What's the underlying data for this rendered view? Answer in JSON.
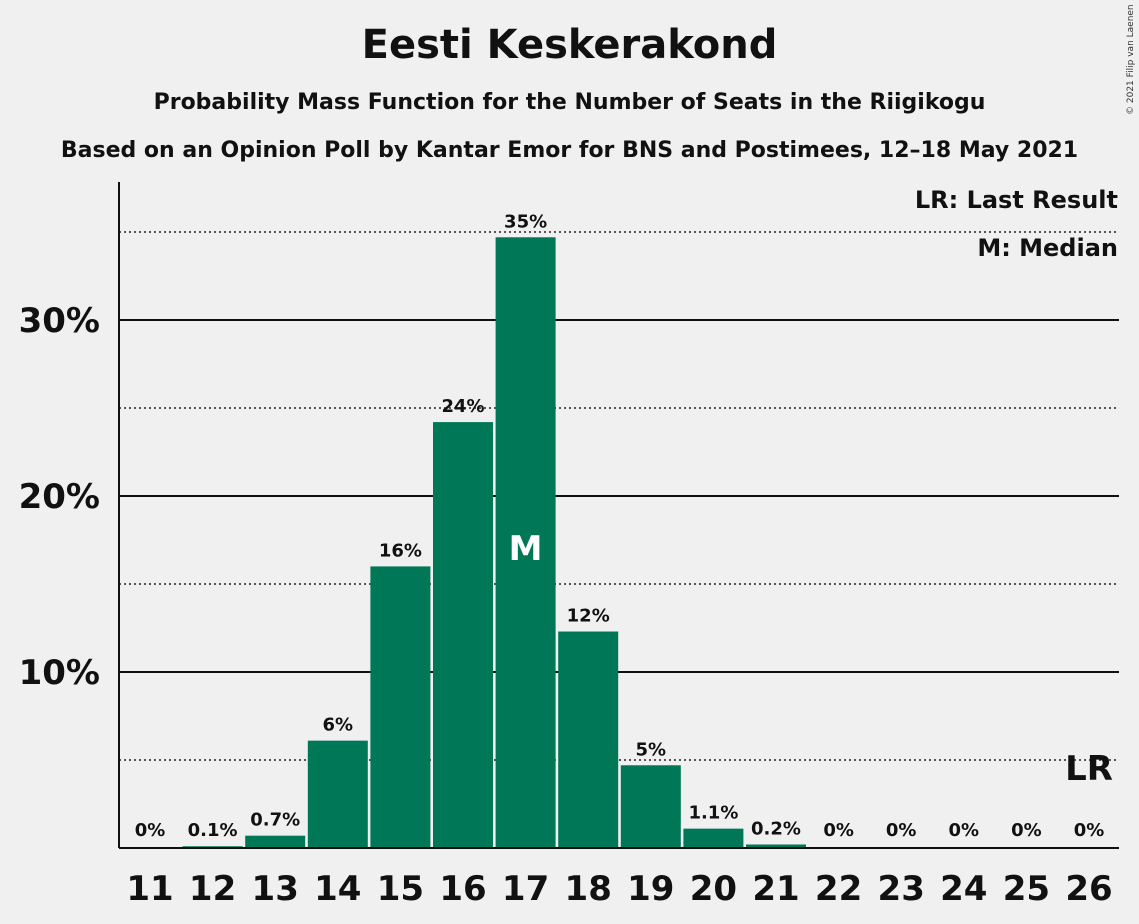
{
  "title": "Eesti Keskerakond",
  "subtitle": "Probability Mass Function for the Number of Seats in the Riigikogu",
  "subtitle2": "Based on an Opinion Poll by Kantar Emor for BNS and Postimees, 12–18 May 2021",
  "copyright": "© 2021 Filip van Laenen",
  "colors": {
    "bar": "#007858",
    "background": "#f0f0f0",
    "text": "#111111"
  },
  "chart_data": {
    "type": "bar",
    "categories": [
      "11",
      "12",
      "13",
      "14",
      "15",
      "16",
      "17",
      "18",
      "19",
      "20",
      "21",
      "22",
      "23",
      "24",
      "25",
      "26"
    ],
    "values": [
      0,
      0.1,
      0.7,
      6.1,
      16.0,
      24.2,
      34.7,
      12.3,
      4.7,
      1.1,
      0.2,
      0,
      0,
      0,
      0,
      0
    ],
    "data_labels": [
      "0%",
      "0.1%",
      "0.7%",
      "6%",
      "16%",
      "24%",
      "35%",
      "12%",
      "5%",
      "1.1%",
      "0.2%",
      "0%",
      "0%",
      "0%",
      "0%",
      "0%"
    ],
    "ylim": [
      0,
      38
    ],
    "yticks": [
      10,
      20,
      30
    ],
    "ytick_labels": [
      "10%",
      "20%",
      "30%"
    ],
    "minor_gridlines": [
      5,
      15,
      25,
      35
    ],
    "median_seat": "17",
    "median_marker": "M",
    "last_result_seat": "26",
    "last_result_marker": "LR",
    "legend": [
      "LR: Last Result",
      "M: Median"
    ],
    "legend_position": "top-right"
  }
}
